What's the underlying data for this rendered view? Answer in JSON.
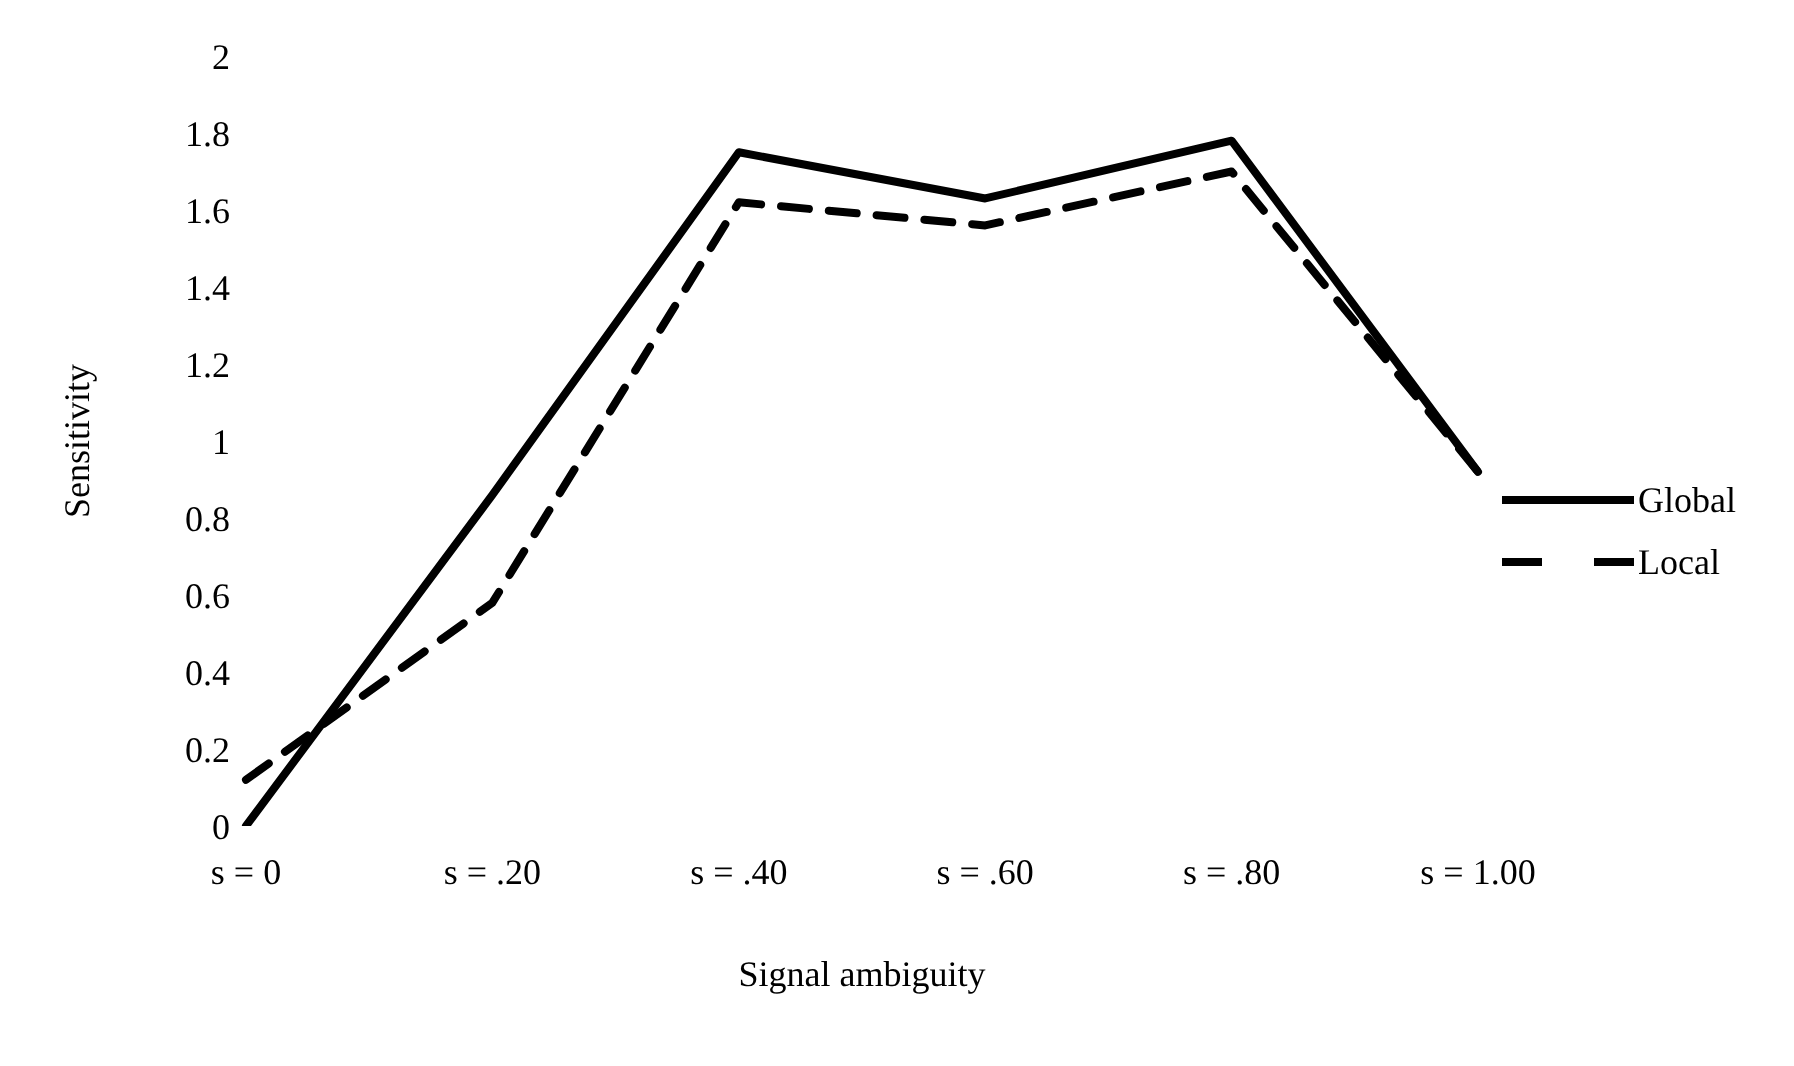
{
  "chart_data": {
    "type": "line",
    "xlabel": "Signal ambiguity",
    "ylabel": "Sensitivity",
    "categories": [
      "s = 0",
      "s = .20",
      "s = .40",
      "s = .60",
      "s = .80",
      "s = 1.00"
    ],
    "series": [
      {
        "name": "Global",
        "color": "#000000",
        "values": [
          0,
          0.86,
          1.75,
          1.63,
          1.78,
          0.92
        ],
        "line_style": "solid"
      },
      {
        "name": "Local",
        "color": "#000000",
        "values": [
          0.12,
          0.58,
          1.62,
          1.56,
          1.7,
          0.92
        ],
        "line_style": "dashed"
      }
    ],
    "ylim": [
      0,
      2
    ],
    "yticks": [
      0,
      0.2,
      0.4,
      0.6,
      0.8,
      1,
      1.2,
      1.4,
      1.6,
      1.8,
      2
    ],
    "grid": false,
    "legend": "right",
    "marker": "none"
  }
}
